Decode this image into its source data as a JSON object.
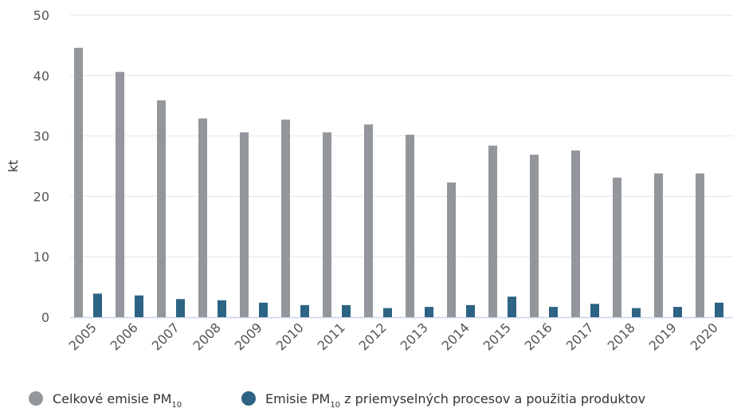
{
  "chart_data": {
    "type": "bar",
    "ylabel": "kt",
    "ylim": [
      0,
      50
    ],
    "yticks": [
      0,
      10,
      20,
      30,
      40,
      50
    ],
    "grid": true,
    "legend_position": "bottom-left",
    "categories": [
      "2005",
      "2006",
      "2007",
      "2008",
      "2009",
      "2010",
      "2011",
      "2012",
      "2013",
      "2014",
      "2015",
      "2016",
      "2017",
      "2018",
      "2019",
      "2020"
    ],
    "series": [
      {
        "name": "Celkové emisie PM10",
        "legend_main": "Celkové emisie PM",
        "legend_sub": "10",
        "legend_rest": "",
        "color": "#93979c",
        "values": [
          44.6,
          40.6,
          35.9,
          32.9,
          30.6,
          32.7,
          30.6,
          31.9,
          30.2,
          22.3,
          28.4,
          26.9,
          27.6,
          23.1,
          23.8,
          23.8
        ]
      },
      {
        "name": "Emisie PM10 z priemyselných procesov a použitia produktov",
        "legend_main": "Emisie PM",
        "legend_sub": "10",
        "legend_rest": " z priemyselných procesov a použitia produktov",
        "color": "#2d6384",
        "values": [
          3.9,
          3.6,
          3.0,
          2.8,
          2.4,
          2.0,
          2.0,
          1.5,
          1.7,
          2.0,
          3.4,
          1.7,
          2.2,
          1.5,
          1.7,
          2.4
        ]
      }
    ]
  },
  "style": {
    "gridline_color": "#e6e6e6",
    "baseline_color": "#c9d3ef"
  }
}
